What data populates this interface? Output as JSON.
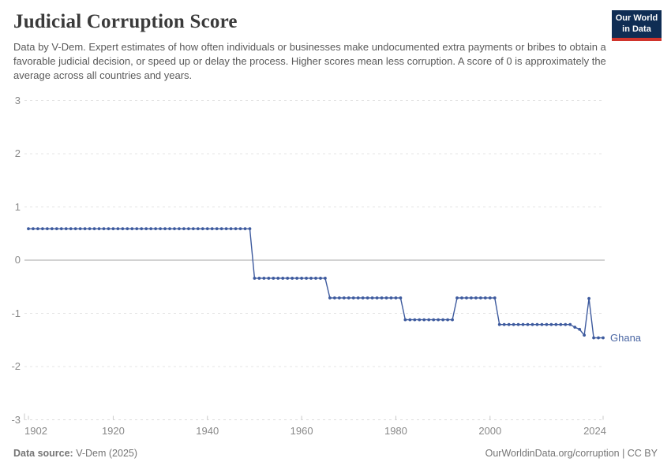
{
  "header": {
    "title": "Judicial Corruption Score",
    "subtitle": "Data by V-Dem. Expert estimates of how often individuals or businesses make undocumented extra payments or bribes to obtain a favorable judicial decision, or speed up or delay the process. Higher scores mean less corruption. A score of 0 is approximately the average across all countries and years.",
    "logo": {
      "line1": "Our World",
      "line2": "in Data",
      "bg_color": "#0f2d54",
      "stripe_color": "#d0342c"
    }
  },
  "chart_data": {
    "type": "line",
    "title": "Judicial Corruption Score",
    "xlabel": "",
    "ylabel": "",
    "xlim": [
      1902,
      2024
    ],
    "ylim": [
      -3,
      3
    ],
    "xticks": [
      1902,
      1920,
      1940,
      1960,
      1980,
      2000,
      2024
    ],
    "yticks": [
      3,
      2,
      1,
      0,
      -1,
      -2,
      -3
    ],
    "grid": "horizontal-dashed",
    "zero_line": true,
    "legend_position": "end-of-line",
    "line_color": "#3d5a9e",
    "marker": "dot",
    "series": [
      {
        "name": "Ghana",
        "points": [
          [
            1902,
            0.59
          ],
          [
            1903,
            0.59
          ],
          [
            1904,
            0.59
          ],
          [
            1905,
            0.59
          ],
          [
            1906,
            0.59
          ],
          [
            1907,
            0.59
          ],
          [
            1908,
            0.59
          ],
          [
            1909,
            0.59
          ],
          [
            1910,
            0.59
          ],
          [
            1911,
            0.59
          ],
          [
            1912,
            0.59
          ],
          [
            1913,
            0.59
          ],
          [
            1914,
            0.59
          ],
          [
            1915,
            0.59
          ],
          [
            1916,
            0.59
          ],
          [
            1917,
            0.59
          ],
          [
            1918,
            0.59
          ],
          [
            1919,
            0.59
          ],
          [
            1920,
            0.59
          ],
          [
            1921,
            0.59
          ],
          [
            1922,
            0.59
          ],
          [
            1923,
            0.59
          ],
          [
            1924,
            0.59
          ],
          [
            1925,
            0.59
          ],
          [
            1926,
            0.59
          ],
          [
            1927,
            0.59
          ],
          [
            1928,
            0.59
          ],
          [
            1929,
            0.59
          ],
          [
            1930,
            0.59
          ],
          [
            1931,
            0.59
          ],
          [
            1932,
            0.59
          ],
          [
            1933,
            0.59
          ],
          [
            1934,
            0.59
          ],
          [
            1935,
            0.59
          ],
          [
            1936,
            0.59
          ],
          [
            1937,
            0.59
          ],
          [
            1938,
            0.59
          ],
          [
            1939,
            0.59
          ],
          [
            1940,
            0.59
          ],
          [
            1941,
            0.59
          ],
          [
            1942,
            0.59
          ],
          [
            1943,
            0.59
          ],
          [
            1944,
            0.59
          ],
          [
            1945,
            0.59
          ],
          [
            1946,
            0.59
          ],
          [
            1947,
            0.59
          ],
          [
            1948,
            0.59
          ],
          [
            1949,
            0.59
          ],
          [
            1950,
            -0.34
          ],
          [
            1951,
            -0.34
          ],
          [
            1952,
            -0.34
          ],
          [
            1953,
            -0.34
          ],
          [
            1954,
            -0.34
          ],
          [
            1955,
            -0.34
          ],
          [
            1956,
            -0.34
          ],
          [
            1957,
            -0.34
          ],
          [
            1958,
            -0.34
          ],
          [
            1959,
            -0.34
          ],
          [
            1960,
            -0.34
          ],
          [
            1961,
            -0.34
          ],
          [
            1962,
            -0.34
          ],
          [
            1963,
            -0.34
          ],
          [
            1964,
            -0.34
          ],
          [
            1965,
            -0.34
          ],
          [
            1966,
            -0.71
          ],
          [
            1967,
            -0.71
          ],
          [
            1968,
            -0.71
          ],
          [
            1969,
            -0.71
          ],
          [
            1970,
            -0.71
          ],
          [
            1971,
            -0.71
          ],
          [
            1972,
            -0.71
          ],
          [
            1973,
            -0.71
          ],
          [
            1974,
            -0.71
          ],
          [
            1975,
            -0.71
          ],
          [
            1976,
            -0.71
          ],
          [
            1977,
            -0.71
          ],
          [
            1978,
            -0.71
          ],
          [
            1979,
            -0.71
          ],
          [
            1980,
            -0.71
          ],
          [
            1981,
            -0.71
          ],
          [
            1982,
            -1.12
          ],
          [
            1983,
            -1.12
          ],
          [
            1984,
            -1.12
          ],
          [
            1985,
            -1.12
          ],
          [
            1986,
            -1.12
          ],
          [
            1987,
            -1.12
          ],
          [
            1988,
            -1.12
          ],
          [
            1989,
            -1.12
          ],
          [
            1990,
            -1.12
          ],
          [
            1991,
            -1.12
          ],
          [
            1992,
            -1.12
          ],
          [
            1993,
            -0.71
          ],
          [
            1994,
            -0.71
          ],
          [
            1995,
            -0.71
          ],
          [
            1996,
            -0.71
          ],
          [
            1997,
            -0.71
          ],
          [
            1998,
            -0.71
          ],
          [
            1999,
            -0.71
          ],
          [
            2000,
            -0.71
          ],
          [
            2001,
            -0.71
          ],
          [
            2002,
            -1.21
          ],
          [
            2003,
            -1.21
          ],
          [
            2004,
            -1.21
          ],
          [
            2005,
            -1.21
          ],
          [
            2006,
            -1.21
          ],
          [
            2007,
            -1.21
          ],
          [
            2008,
            -1.21
          ],
          [
            2009,
            -1.21
          ],
          [
            2010,
            -1.21
          ],
          [
            2011,
            -1.21
          ],
          [
            2012,
            -1.21
          ],
          [
            2013,
            -1.21
          ],
          [
            2014,
            -1.21
          ],
          [
            2015,
            -1.21
          ],
          [
            2016,
            -1.21
          ],
          [
            2017,
            -1.21
          ],
          [
            2018,
            -1.26
          ],
          [
            2019,
            -1.3
          ],
          [
            2020,
            -1.41
          ],
          [
            2021,
            -0.72
          ],
          [
            2022,
            -1.46
          ],
          [
            2023,
            -1.46
          ],
          [
            2024,
            -1.46
          ]
        ]
      }
    ]
  },
  "footer": {
    "source_label": "Data source:",
    "source_value": "V-Dem (2025)",
    "credit": "OurWorldinData.org/corruption | CC BY"
  }
}
